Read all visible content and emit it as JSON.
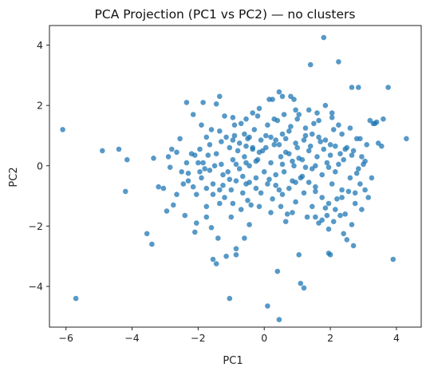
{
  "chart_data": {
    "type": "scatter",
    "title": "PCA Projection (PC1 vs PC2) — no clusters",
    "xlabel": "PC1",
    "ylabel": "PC2",
    "xlim": [
      -6.5,
      4.75
    ],
    "ylim": [
      -5.35,
      4.65
    ],
    "xticks": [
      -6,
      -4,
      -2,
      0,
      2,
      4
    ],
    "yticks": [
      -4,
      -2,
      0,
      2,
      4
    ],
    "grid": false,
    "color": "#1f77b4",
    "marker_alpha": 0.75,
    "series": [
      {
        "points": [
          [
            -6.1,
            1.2
          ],
          [
            -5.7,
            -4.4
          ],
          [
            -4.9,
            0.5
          ],
          [
            -4.4,
            0.55
          ],
          [
            -4.2,
            -0.85
          ],
          [
            -4.15,
            0.2
          ],
          [
            -3.55,
            -2.25
          ],
          [
            -3.4,
            -2.6
          ],
          [
            -3.35,
            0.25
          ],
          [
            -3.2,
            -0.7
          ],
          [
            -3.05,
            -0.75
          ],
          [
            -2.9,
            0.3
          ],
          [
            -2.85,
            -0.05
          ],
          [
            -2.95,
            -1.5
          ],
          [
            -2.75,
            -1.3
          ],
          [
            -2.65,
            0.45
          ],
          [
            -2.5,
            -0.2
          ],
          [
            -2.45,
            -0.6
          ],
          [
            -2.35,
            0.1
          ],
          [
            -2.3,
            -0.5
          ],
          [
            -2.2,
            0.4
          ],
          [
            -2.15,
            -0.7
          ],
          [
            -2.1,
            -2.2
          ],
          [
            -2.05,
            -1.9
          ],
          [
            -1.9,
            -0.4
          ],
          [
            -1.85,
            0.1
          ],
          [
            -1.85,
            2.1
          ],
          [
            -1.8,
            -0.1
          ],
          [
            -1.75,
            -1.35
          ],
          [
            -1.7,
            0.35
          ],
          [
            -1.6,
            1.2
          ],
          [
            -1.55,
            -0.6
          ],
          [
            -1.5,
            0.0
          ],
          [
            -1.45,
            0.4
          ],
          [
            -1.4,
            -2.4
          ],
          [
            -1.35,
            -0.8
          ],
          [
            -1.3,
            0.8
          ],
          [
            -1.25,
            -0.3
          ],
          [
            -1.2,
            1.65
          ],
          [
            -1.1,
            -0.2
          ],
          [
            -1.05,
            0.6
          ],
          [
            -1.0,
            -0.8
          ],
          [
            -1.0,
            -1.7
          ],
          [
            -0.95,
            0.2
          ],
          [
            -0.9,
            1.0
          ],
          [
            -0.85,
            -0.5
          ],
          [
            -0.8,
            0.5
          ],
          [
            -0.75,
            -0.1
          ],
          [
            -0.7,
            1.4
          ],
          [
            -0.65,
            -0.9
          ],
          [
            -0.6,
            0.3
          ],
          [
            -0.55,
            -0.6
          ],
          [
            -0.5,
            0.9
          ],
          [
            -0.45,
            0.0
          ],
          [
            -0.4,
            -1.3
          ],
          [
            -0.35,
            0.6
          ],
          [
            -0.3,
            1.2
          ],
          [
            -0.25,
            -0.4
          ],
          [
            -0.2,
            0.2
          ],
          [
            -0.15,
            1.9
          ],
          [
            -0.1,
            -0.9
          ],
          [
            -0.05,
            0.5
          ],
          [
            0.0,
            -0.2
          ],
          [
            0.05,
            1.0
          ],
          [
            0.1,
            -0.6
          ],
          [
            0.15,
            2.2
          ],
          [
            0.2,
            0.1
          ],
          [
            0.25,
            -1.1
          ],
          [
            0.3,
            0.7
          ],
          [
            0.35,
            -0.3
          ],
          [
            0.4,
            1.5
          ],
          [
            0.45,
            -0.8
          ],
          [
            0.5,
            0.3
          ],
          [
            0.55,
            2.3
          ],
          [
            0.6,
            -0.2
          ],
          [
            0.65,
            0.9
          ],
          [
            0.7,
            -1.6
          ],
          [
            0.75,
            0.4
          ],
          [
            0.8,
            1.3
          ],
          [
            0.85,
            -0.5
          ],
          [
            0.9,
            0.0
          ],
          [
            0.95,
            -1.2
          ],
          [
            1.0,
            0.6
          ],
          [
            1.05,
            1.7
          ],
          [
            1.1,
            -0.4
          ],
          [
            1.15,
            0.2
          ],
          [
            1.2,
            -0.9
          ],
          [
            1.25,
            1.0
          ],
          [
            1.3,
            -1.7
          ],
          [
            1.35,
            0.5
          ],
          [
            1.4,
            3.35
          ],
          [
            1.45,
            -0.1
          ],
          [
            1.5,
            1.4
          ],
          [
            1.55,
            -0.7
          ],
          [
            1.6,
            0.3
          ],
          [
            1.65,
            -1.9
          ],
          [
            1.7,
            0.8
          ],
          [
            1.75,
            -0.3
          ],
          [
            1.8,
            4.25
          ],
          [
            1.85,
            -1.4
          ],
          [
            1.9,
            0.1
          ],
          [
            1.95,
            -2.1
          ],
          [
            2.0,
            0.7
          ],
          [
            2.05,
            -0.6
          ],
          [
            2.1,
            1.2
          ],
          [
            2.15,
            -0.2
          ],
          [
            2.2,
            -1.1
          ],
          [
            2.25,
            3.45
          ],
          [
            2.3,
            0.4
          ],
          [
            2.35,
            -0.8
          ],
          [
            2.4,
            0.2
          ],
          [
            2.45,
            -1.6
          ],
          [
            2.5,
            0.6
          ],
          [
            2.6,
            -0.4
          ],
          [
            2.65,
            2.6
          ],
          [
            2.7,
            0.5
          ],
          [
            2.75,
            -0.9
          ],
          [
            2.8,
            0.9
          ],
          [
            2.85,
            -0.1
          ],
          [
            2.9,
            -0.6
          ],
          [
            2.95,
            0.3
          ],
          [
            3.05,
            -0.8
          ],
          [
            3.1,
            0.7
          ],
          [
            3.2,
            1.5
          ],
          [
            3.25,
            -0.4
          ],
          [
            3.3,
            1.4
          ],
          [
            3.55,
            0.65
          ],
          [
            3.6,
            1.55
          ],
          [
            3.75,
            2.6
          ],
          [
            3.9,
            -3.1
          ],
          [
            4.3,
            0.9
          ],
          [
            -1.05,
            -4.4
          ],
          [
            -1.55,
            -3.1
          ],
          [
            -1.45,
            -3.25
          ],
          [
            -1.15,
            -3.0
          ],
          [
            -0.85,
            -2.95
          ],
          [
            -0.85,
            -2.75
          ],
          [
            -0.6,
            -2.4
          ],
          [
            0.1,
            -4.65
          ],
          [
            0.45,
            -5.1
          ],
          [
            0.4,
            -3.5
          ],
          [
            1.05,
            -2.95
          ],
          [
            1.1,
            -3.9
          ],
          [
            1.2,
            -4.05
          ],
          [
            1.95,
            -2.9
          ],
          [
            2.0,
            -2.95
          ],
          [
            -2.4,
            -1.65
          ],
          [
            -1.75,
            -1.7
          ],
          [
            -1.6,
            -2.05
          ],
          [
            -0.45,
            -1.95
          ],
          [
            0.65,
            -1.85
          ],
          [
            1.55,
            -1.7
          ],
          [
            1.75,
            -1.8
          ],
          [
            2.4,
            -2.25
          ],
          [
            2.7,
            -2.65
          ],
          [
            2.5,
            -2.45
          ],
          [
            -2.35,
            2.1
          ],
          [
            -2.15,
            1.7
          ],
          [
            -1.45,
            2.05
          ],
          [
            -1.35,
            2.3
          ],
          [
            -0.95,
            1.6
          ],
          [
            -0.55,
            1.55
          ],
          [
            -0.35,
            1.75
          ],
          [
            -0.2,
            1.65
          ],
          [
            0.25,
            2.2
          ],
          [
            0.45,
            2.45
          ],
          [
            0.8,
            2.3
          ],
          [
            0.9,
            2.2
          ],
          [
            0.95,
            1.85
          ],
          [
            1.6,
            1.75
          ],
          [
            1.65,
            1.5
          ],
          [
            1.85,
            2.0
          ],
          [
            2.05,
            1.75
          ],
          [
            2.05,
            1.6
          ],
          [
            2.25,
            1.35
          ],
          [
            2.85,
            2.6
          ],
          [
            3.35,
            1.4
          ],
          [
            3.4,
            1.45
          ],
          [
            3.45,
            0.75
          ],
          [
            -2.1,
            0.35
          ],
          [
            -2.0,
            0.1
          ],
          [
            -1.95,
            0.55
          ],
          [
            -1.65,
            0.7
          ],
          [
            -1.35,
            1.15
          ],
          [
            -1.15,
            0.95
          ],
          [
            -0.95,
            0.85
          ],
          [
            -0.75,
            0.75
          ],
          [
            -0.55,
            0.65
          ],
          [
            -0.35,
            0.55
          ],
          [
            -0.15,
            0.45
          ],
          [
            0.05,
            0.6
          ],
          [
            0.35,
            0.85
          ],
          [
            0.55,
            1.05
          ],
          [
            0.75,
            1.15
          ],
          [
            1.25,
            1.25
          ],
          [
            1.45,
            1.05
          ],
          [
            1.65,
            0.95
          ],
          [
            1.85,
            0.85
          ],
          [
            2.15,
            0.65
          ],
          [
            2.45,
            0.55
          ],
          [
            2.65,
            0.35
          ],
          [
            -2.05,
            -0.95
          ],
          [
            -1.75,
            -0.75
          ],
          [
            -1.55,
            -0.95
          ],
          [
            -1.25,
            -0.65
          ],
          [
            -1.05,
            -0.45
          ],
          [
            -0.65,
            -0.35
          ],
          [
            -0.45,
            -0.55
          ],
          [
            -0.25,
            -0.75
          ],
          [
            0.15,
            -0.45
          ],
          [
            0.35,
            -0.65
          ],
          [
            0.55,
            -0.95
          ],
          [
            0.75,
            -0.75
          ],
          [
            0.95,
            -0.55
          ],
          [
            1.15,
            -0.35
          ],
          [
            1.35,
            -0.55
          ],
          [
            1.55,
            -0.85
          ],
          [
            1.75,
            -1.05
          ],
          [
            1.95,
            -1.25
          ],
          [
            2.15,
            -1.45
          ],
          [
            2.35,
            -1.05
          ],
          [
            2.55,
            -0.85
          ],
          [
            2.75,
            -1.25
          ],
          [
            2.95,
            -1.45
          ],
          [
            3.15,
            -1.05
          ],
          [
            -2.55,
            0.9
          ],
          [
            -2.65,
            -0.95
          ],
          [
            -2.8,
            0.55
          ],
          [
            -1.9,
            1.35
          ],
          [
            -1.75,
            0.95
          ],
          [
            -0.9,
            1.35
          ],
          [
            -0.6,
            1.05
          ],
          [
            0.1,
            1.35
          ],
          [
            0.3,
            1.55
          ],
          [
            0.6,
            1.7
          ],
          [
            1.0,
            1.55
          ],
          [
            1.35,
            1.85
          ],
          [
            2.35,
            1.05
          ],
          [
            2.6,
            1.25
          ],
          [
            2.9,
            0.9
          ],
          [
            3.05,
            0.15
          ],
          [
            -1.35,
            -1.25
          ],
          [
            -1.2,
            -1.05
          ],
          [
            -0.95,
            -1.25
          ],
          [
            -0.7,
            -1.45
          ],
          [
            -0.5,
            -1.15
          ],
          [
            -0.15,
            -1.35
          ],
          [
            0.2,
            -1.55
          ],
          [
            0.5,
            -1.35
          ],
          [
            0.85,
            -1.55
          ],
          [
            1.45,
            -1.35
          ],
          [
            1.9,
            -1.65
          ],
          [
            2.1,
            -1.85
          ],
          [
            2.3,
            -1.65
          ],
          [
            2.65,
            -1.95
          ],
          [
            -2.3,
            -0.25
          ],
          [
            -1.95,
            -0.2
          ],
          [
            -1.65,
            -0.15
          ],
          [
            -1.3,
            0.05
          ],
          [
            -0.85,
            0.05
          ],
          [
            -0.55,
            0.1
          ],
          [
            -0.25,
            0.15
          ],
          [
            0.55,
            0.05
          ],
          [
            0.85,
            0.15
          ],
          [
            1.05,
            0.25
          ],
          [
            1.25,
            -0.05
          ],
          [
            1.55,
            0.0
          ],
          [
            1.95,
            -0.05
          ],
          [
            2.25,
            0.05
          ],
          [
            2.8,
            -0.25
          ],
          [
            3.0,
            0.05
          ],
          [
            -0.45,
            0.95
          ],
          [
            -0.1,
            0.85
          ],
          [
            0.2,
            0.95
          ],
          [
            0.45,
            0.7
          ],
          [
            0.65,
            0.45
          ],
          [
            0.95,
            0.75
          ],
          [
            1.2,
            0.85
          ],
          [
            1.4,
            0.65
          ],
          [
            1.8,
            0.55
          ],
          [
            2.0,
            0.35
          ]
        ]
      }
    ]
  }
}
